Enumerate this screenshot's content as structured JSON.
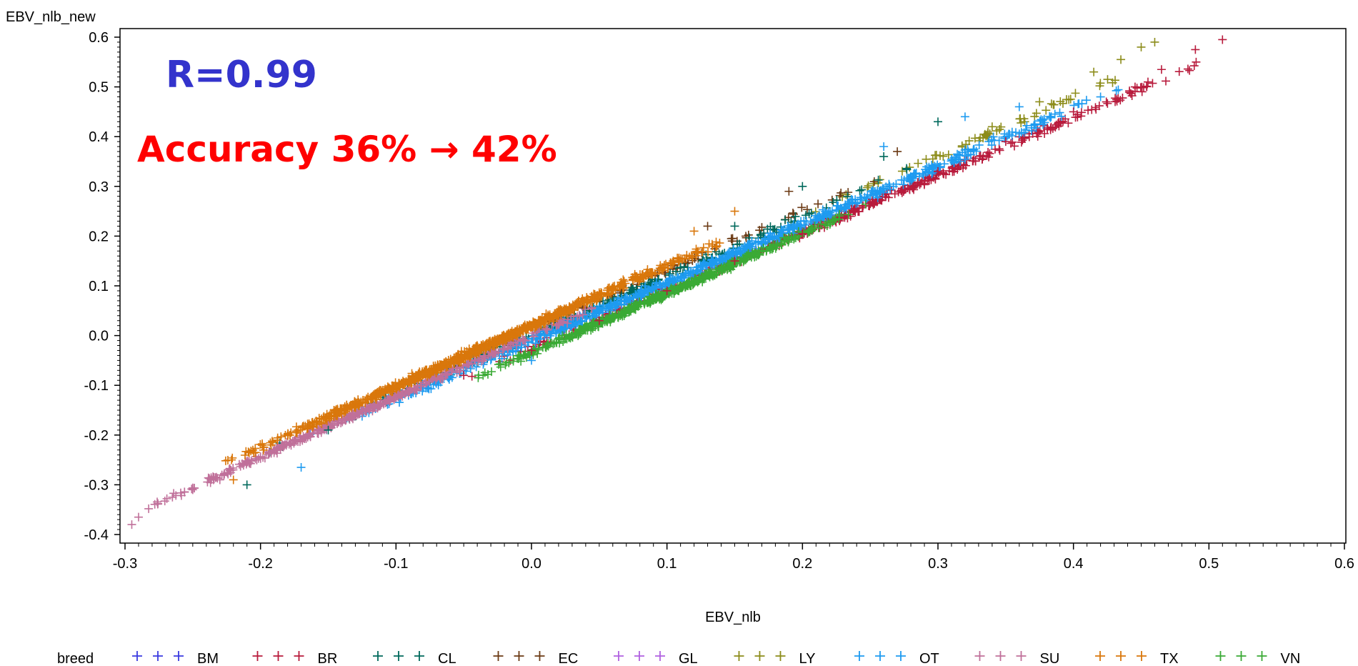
{
  "chart_data": {
    "type": "scatter",
    "xlabel": "EBV_nlb",
    "ylabel": "EBV_nlb_new",
    "xlim": [
      -0.3,
      0.6
    ],
    "ylim": [
      -0.4,
      0.6
    ],
    "x_ticks": [
      "-0.3",
      "-0.2",
      "-0.1",
      "0.0",
      "0.1",
      "0.2",
      "0.3",
      "0.4",
      "0.5",
      "0.6"
    ],
    "y_ticks": [
      "-0.4",
      "-0.3",
      "-0.2",
      "-0.1",
      "0.0",
      "0.1",
      "0.2",
      "0.3",
      "0.4",
      "0.5",
      "0.6"
    ],
    "marker": "+",
    "grid": false,
    "legend_title": "breed",
    "legend_position": "bottom",
    "annotations": [
      {
        "text": "R=0.99",
        "color": "#3333cc"
      },
      {
        "text": "Accuracy 36% → 42%",
        "color": "#ff0000"
      }
    ],
    "series": [
      {
        "name": "BM",
        "color": "#3a3ae0",
        "points": []
      },
      {
        "name": "BR",
        "color": "#b81b3c",
        "x_range": [
          -0.05,
          0.51
        ],
        "slope": 1.16,
        "intercept": -0.025,
        "points": [
          [
            0.51,
            0.595
          ],
          [
            0.49,
            0.575
          ],
          [
            0.465,
            0.535
          ],
          [
            0.455,
            0.51
          ],
          [
            0.4,
            0.45
          ],
          [
            0.35,
            0.39
          ],
          [
            0.3,
            0.33
          ],
          [
            0.25,
            0.265
          ],
          [
            0.2,
            0.205
          ],
          [
            0.15,
            0.15
          ],
          [
            0.1,
            0.09
          ],
          [
            0.05,
            0.03
          ],
          [
            0.0,
            -0.03
          ],
          [
            -0.05,
            -0.08
          ]
        ]
      },
      {
        "name": "CL",
        "color": "#00695c",
        "x_range": [
          -0.22,
          0.3
        ],
        "slope": 1.2,
        "intercept": 0.0,
        "points": [
          [
            -0.21,
            -0.3
          ],
          [
            -0.15,
            -0.19
          ],
          [
            0.3,
            0.43
          ],
          [
            0.26,
            0.36
          ],
          [
            0.2,
            0.3
          ],
          [
            0.15,
            0.22
          ]
        ]
      },
      {
        "name": "EC",
        "color": "#6b3a14",
        "x_range": [
          -0.15,
          0.28
        ],
        "slope": 1.2,
        "intercept": 0.01,
        "points": [
          [
            0.19,
            0.29
          ],
          [
            0.13,
            0.22
          ],
          [
            0.27,
            0.37
          ]
        ]
      },
      {
        "name": "GL",
        "color": "#b060e0",
        "points": []
      },
      {
        "name": "LY",
        "color": "#8c8c1a",
        "x_range": [
          0.2,
          0.46
        ],
        "slope": 1.2,
        "intercept": 0.0,
        "points": [
          [
            0.46,
            0.59
          ],
          [
            0.45,
            0.58
          ],
          [
            0.435,
            0.555
          ],
          [
            0.415,
            0.53
          ],
          [
            0.375,
            0.47
          ],
          [
            0.34,
            0.42
          ]
        ]
      },
      {
        "name": "OT",
        "color": "#1e9bf0",
        "x_range": [
          -0.17,
          0.44
        ],
        "slope": 1.17,
        "intercept": -0.01,
        "points": [
          [
            0.42,
            0.48
          ],
          [
            0.36,
            0.46
          ],
          [
            0.32,
            0.44
          ],
          [
            0.26,
            0.38
          ],
          [
            -0.17,
            -0.265
          ],
          [
            0.0,
            -0.05
          ]
        ]
      },
      {
        "name": "SU",
        "color": "#c0709a",
        "x_range": [
          -0.3,
          0.06
        ],
        "slope": 1.22,
        "intercept": 0.0,
        "points": [
          [
            -0.295,
            -0.38
          ],
          [
            -0.29,
            -0.365
          ],
          [
            -0.265,
            -0.325
          ],
          [
            -0.25,
            -0.31
          ],
          [
            -0.23,
            -0.29
          ],
          [
            -0.2,
            -0.245
          ]
        ]
      },
      {
        "name": "TX",
        "color": "#d9770b",
        "x_range": [
          -0.23,
          0.15
        ],
        "slope": 1.22,
        "intercept": 0.02,
        "points": [
          [
            -0.22,
            -0.29
          ],
          [
            0.15,
            0.25
          ],
          [
            0.12,
            0.21
          ]
        ]
      },
      {
        "name": "VN",
        "color": "#3aaa35",
        "x_range": [
          -0.05,
          0.25
        ],
        "slope": 1.2,
        "intercept": -0.035,
        "points": []
      }
    ]
  }
}
